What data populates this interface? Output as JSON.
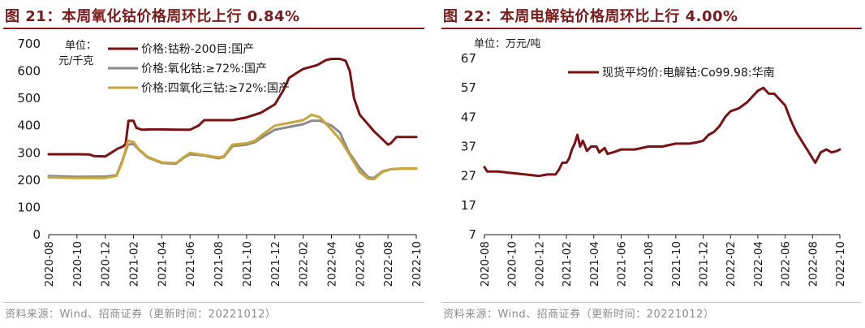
{
  "chart_data": [
    {
      "type": "line",
      "title": "图 21：本周氧化钴价格周环比上行 0.84%",
      "unit_label_line1": "单位：",
      "unit_label_line2": "元/千克",
      "ylim": [
        0,
        700
      ],
      "yticks": [
        0,
        100,
        200,
        300,
        400,
        500,
        600,
        700
      ],
      "x_categories": [
        "2020-08",
        "2020-10",
        "2020-12",
        "2021-02",
        "2021-04",
        "2021-06",
        "2021-08",
        "2021-10",
        "2021-12",
        "2022-02",
        "2022-04",
        "2022-06",
        "2022-08",
        "2022-10"
      ],
      "source": "资料来源：Wind、招商证券（更新时间：20221012）",
      "series": [
        {
          "name": "价格:钴粉-200目:国产",
          "color": "#7b1113",
          "points": [
            [
              0,
              295
            ],
            [
              1,
              295
            ],
            [
              1.45,
              294
            ],
            [
              1.6,
              288
            ],
            [
              2,
              287
            ],
            [
              2.2,
              300
            ],
            [
              2.45,
              316
            ],
            [
              2.6,
              322
            ],
            [
              2.72,
              332
            ],
            [
              2.82,
              418
            ],
            [
              3.0,
              418
            ],
            [
              3.1,
              392
            ],
            [
              3.3,
              385
            ],
            [
              3.6,
              386
            ],
            [
              4,
              386
            ],
            [
              4.6,
              385
            ],
            [
              5,
              385
            ],
            [
              5.3,
              400
            ],
            [
              5.5,
              420
            ],
            [
              6,
              420
            ],
            [
              6.5,
              420
            ],
            [
              7,
              430
            ],
            [
              7.5,
              447
            ],
            [
              8,
              478
            ],
            [
              8.3,
              530
            ],
            [
              8.5,
              575
            ],
            [
              8.8,
              595
            ],
            [
              9,
              608
            ],
            [
              9.5,
              622
            ],
            [
              9.8,
              640
            ],
            [
              10,
              645
            ],
            [
              10.3,
              645
            ],
            [
              10.5,
              638
            ],
            [
              10.65,
              600
            ],
            [
              10.8,
              500
            ],
            [
              11,
              440
            ],
            [
              11.5,
              380
            ],
            [
              12,
              330
            ],
            [
              12.1,
              335
            ],
            [
              12.3,
              358
            ],
            [
              12.7,
              358
            ],
            [
              13,
              358
            ]
          ]
        },
        {
          "name": "价格:氧化钴:≥72%:国产",
          "color": "#8a8a8a",
          "points": [
            [
              0,
              215
            ],
            [
              1,
              212
            ],
            [
              2,
              213
            ],
            [
              2.4,
              218
            ],
            [
              2.6,
              270
            ],
            [
              2.8,
              330
            ],
            [
              3.0,
              333
            ],
            [
              3.2,
              310
            ],
            [
              3.5,
              283
            ],
            [
              4,
              263
            ],
            [
              4.5,
              260
            ],
            [
              4.75,
              280
            ],
            [
              5,
              295
            ],
            [
              5.5,
              290
            ],
            [
              6,
              280
            ],
            [
              6.2,
              285
            ],
            [
              6.5,
              325
            ],
            [
              7,
              330
            ],
            [
              7.3,
              340
            ],
            [
              7.6,
              360
            ],
            [
              8,
              385
            ],
            [
              8.5,
              395
            ],
            [
              9,
              405
            ],
            [
              9.3,
              418
            ],
            [
              9.6,
              418
            ],
            [
              10,
              400
            ],
            [
              10.3,
              375
            ],
            [
              10.6,
              305
            ],
            [
              11,
              245
            ],
            [
              11.3,
              210
            ],
            [
              11.5,
              208
            ],
            [
              11.8,
              232
            ],
            [
              12.1,
              240
            ],
            [
              12.5,
              242
            ],
            [
              13,
              242
            ]
          ]
        },
        {
          "name": "价格:四氧化三钴:≥72%:国产",
          "color": "#c9a53a",
          "points": [
            [
              0,
              210
            ],
            [
              1,
              208
            ],
            [
              2,
              208
            ],
            [
              2.4,
              216
            ],
            [
              2.6,
              265
            ],
            [
              2.8,
              345
            ],
            [
              3.0,
              340
            ],
            [
              3.2,
              312
            ],
            [
              3.5,
              285
            ],
            [
              4,
              265
            ],
            [
              4.5,
              262
            ],
            [
              4.75,
              282
            ],
            [
              5,
              300
            ],
            [
              5.5,
              292
            ],
            [
              6,
              283
            ],
            [
              6.2,
              288
            ],
            [
              6.5,
              330
            ],
            [
              7,
              335
            ],
            [
              7.3,
              345
            ],
            [
              7.6,
              370
            ],
            [
              8,
              400
            ],
            [
              8.5,
              410
            ],
            [
              9,
              420
            ],
            [
              9.3,
              440
            ],
            [
              9.6,
              430
            ],
            [
              10,
              385
            ],
            [
              10.3,
              350
            ],
            [
              10.6,
              300
            ],
            [
              11,
              230
            ],
            [
              11.3,
              205
            ],
            [
              11.5,
              203
            ],
            [
              11.8,
              230
            ],
            [
              12.1,
              240
            ],
            [
              12.5,
              243
            ],
            [
              13,
              243
            ]
          ]
        }
      ]
    },
    {
      "type": "line",
      "title": "图 22：本周电解钴价格周环比上行 4.00%",
      "unit_label_line1": "单位：万元/吨",
      "ylim": [
        7,
        67
      ],
      "yticks": [
        7,
        17,
        27,
        37,
        47,
        57,
        67
      ],
      "x_categories": [
        "2020-08",
        "2020-10",
        "2020-12",
        "2021-02",
        "2021-04",
        "2021-06",
        "2021-08",
        "2021-10",
        "2021-12",
        "2022-02",
        "2022-04",
        "2022-06",
        "2022-08",
        "2022-10"
      ],
      "source": "资料来源：Wind、招商证券（更新时间：20221012）",
      "series": [
        {
          "name": "现货平均价:电解钴:Co99.98:华南",
          "color": "#7b1113",
          "points": [
            [
              0,
              30
            ],
            [
              0.1,
              28.5
            ],
            [
              0.5,
              28.5
            ],
            [
              1,
              28
            ],
            [
              1.5,
              27.5
            ],
            [
              2,
              27
            ],
            [
              2.3,
              27.5
            ],
            [
              2.6,
              27.5
            ],
            [
              2.72,
              29
            ],
            [
              2.85,
              31.5
            ],
            [
              3.0,
              31.5
            ],
            [
              3.1,
              33
            ],
            [
              3.2,
              36
            ],
            [
              3.3,
              38
            ],
            [
              3.4,
              41
            ],
            [
              3.5,
              37
            ],
            [
              3.6,
              39
            ],
            [
              3.75,
              35.5
            ],
            [
              3.9,
              37
            ],
            [
              4.1,
              37
            ],
            [
              4.2,
              35
            ],
            [
              4.4,
              36.5
            ],
            [
              4.5,
              34.5
            ],
            [
              4.7,
              35
            ],
            [
              5,
              36
            ],
            [
              5.5,
              36
            ],
            [
              6,
              37
            ],
            [
              6.5,
              37
            ],
            [
              7,
              38
            ],
            [
              7.5,
              38
            ],
            [
              7.8,
              38.5
            ],
            [
              8,
              39
            ],
            [
              8.2,
              41
            ],
            [
              8.4,
              42
            ],
            [
              8.6,
              44
            ],
            [
              8.8,
              47
            ],
            [
              9,
              49
            ],
            [
              9.3,
              50
            ],
            [
              9.6,
              52
            ],
            [
              9.8,
              54
            ],
            [
              10,
              56
            ],
            [
              10.2,
              57
            ],
            [
              10.4,
              55
            ],
            [
              10.6,
              55
            ],
            [
              10.8,
              53
            ],
            [
              11,
              51
            ],
            [
              11.2,
              46
            ],
            [
              11.4,
              42
            ],
            [
              11.6,
              39
            ],
            [
              11.8,
              36
            ],
            [
              12,
              33
            ],
            [
              12.1,
              31.5
            ],
            [
              12.3,
              35
            ],
            [
              12.5,
              36
            ],
            [
              12.7,
              35
            ],
            [
              12.9,
              35.5
            ],
            [
              13,
              36
            ]
          ]
        }
      ]
    }
  ]
}
